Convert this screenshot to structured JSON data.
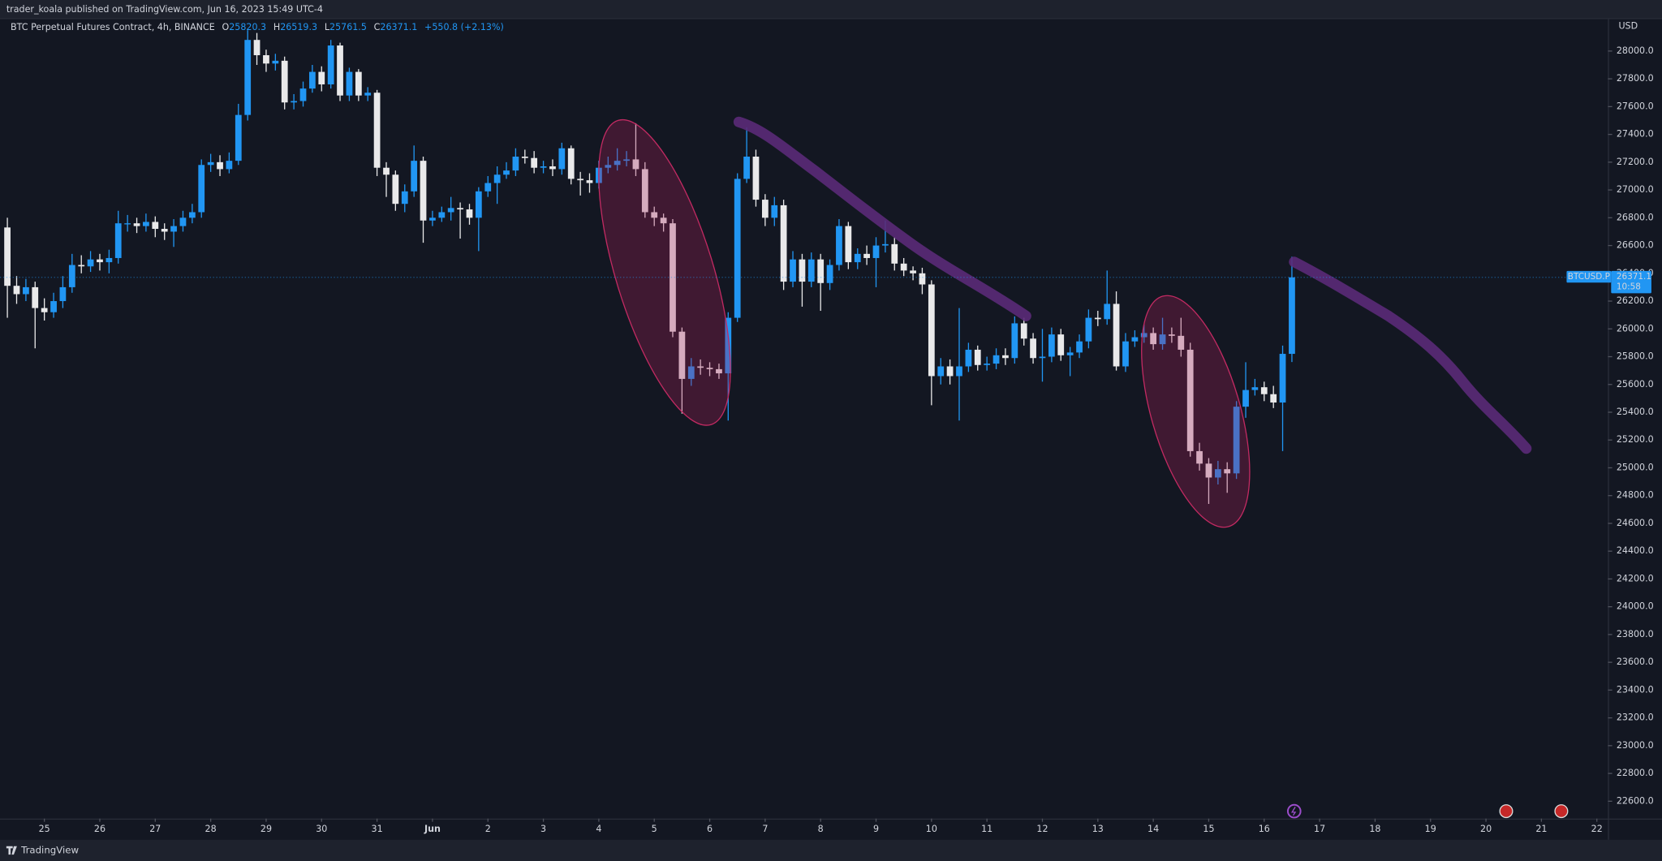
{
  "header": {
    "text": "trader_koala published on TradingView.com, Jun 16, 2023 15:49 UTC-4"
  },
  "footer": {
    "brand": "TradingView"
  },
  "legend": {
    "symbol": "BTC Perpetual Futures Contract, 4h, BINANCE",
    "open_label": "O",
    "high_label": "H",
    "low_label": "L",
    "close_label": "C",
    "change": "+550.8 (+2.13%)"
  },
  "price_tag": {
    "ticker": "BTCUSD.P",
    "countdown": "10:58"
  },
  "chart_data": {
    "type": "candlestick",
    "currency": "USD",
    "up_color": "#2196f3",
    "down_color": "#e9e9ea",
    "grid": false,
    "xlim": [
      24.2,
      53.2
    ],
    "xticks": [
      25,
      26,
      27,
      28,
      29,
      30,
      31,
      {
        "value": 32,
        "label": "Jun"
      },
      {
        "value": 33,
        "label": "2"
      },
      {
        "value": 34,
        "label": "3"
      },
      {
        "value": 35,
        "label": "4"
      },
      {
        "value": 36,
        "label": "5"
      },
      {
        "value": 37,
        "label": "6"
      },
      {
        "value": 38,
        "label": "7"
      },
      {
        "value": 39,
        "label": "8"
      },
      {
        "value": 40,
        "label": "9"
      },
      {
        "value": 41,
        "label": "10"
      },
      {
        "value": 42,
        "label": "11"
      },
      {
        "value": 43,
        "label": "12"
      },
      {
        "value": 44,
        "label": "13"
      },
      {
        "value": 45,
        "label": "14"
      },
      {
        "value": 46,
        "label": "15"
      },
      {
        "value": 47,
        "label": "16"
      },
      {
        "value": 48,
        "label": "17"
      },
      {
        "value": 49,
        "label": "18"
      },
      {
        "value": 50,
        "label": "19"
      },
      {
        "value": 51,
        "label": "20"
      },
      {
        "value": 52,
        "label": "21"
      },
      {
        "value": 53,
        "label": "22"
      }
    ],
    "ylim": [
      22475,
      28230
    ],
    "yticks": [
      {
        "value": 22600,
        "label": "22600.0"
      },
      {
        "value": 22800,
        "label": "22800.0"
      },
      {
        "value": 23000,
        "label": "23000.0"
      },
      {
        "value": 23200,
        "label": "23200.0"
      },
      {
        "value": 23400,
        "label": "23400.0"
      },
      {
        "value": 23600,
        "label": "23600.0"
      },
      {
        "value": 23800,
        "label": "23800.0"
      },
      {
        "value": 24000,
        "label": "24000.0"
      },
      {
        "value": 24200,
        "label": "24200.0"
      },
      {
        "value": 24400,
        "label": "24400.0"
      },
      {
        "value": 24600,
        "label": "24600.0"
      },
      {
        "value": 24800,
        "label": "24800.0"
      },
      {
        "value": 25000,
        "label": "25000.0"
      },
      {
        "value": 25200,
        "label": "25200.0"
      },
      {
        "value": 25400,
        "label": "25400.0"
      },
      {
        "value": 25600,
        "label": "25600.0"
      },
      {
        "value": 25800,
        "label": "25800.0"
      },
      {
        "value": 26000,
        "label": "26000.0"
      },
      {
        "value": 26200,
        "label": "26200.0"
      },
      {
        "value": 26400,
        "label": "26400.0"
      },
      {
        "value": 26600,
        "label": "26600.0"
      },
      {
        "value": 26800,
        "label": "26800.0"
      },
      {
        "value": 27000,
        "label": "27000.0"
      },
      {
        "value": 27200,
        "label": "27200.0"
      },
      {
        "value": 27400,
        "label": "27400.0"
      },
      {
        "value": 27600,
        "label": "27600.0"
      },
      {
        "value": 27800,
        "label": "27800.0"
      },
      {
        "value": 28000,
        "label": "28000.0"
      }
    ],
    "x": [
      24.333,
      24.5,
      24.667,
      24.833,
      25,
      25.167,
      25.333,
      25.5,
      25.667,
      25.833,
      26,
      26.167,
      26.333,
      26.5,
      26.667,
      26.833,
      27,
      27.167,
      27.333,
      27.5,
      27.667,
      27.833,
      28,
      28.167,
      28.333,
      28.5,
      28.667,
      28.833,
      29,
      29.167,
      29.333,
      29.5,
      29.667,
      29.833,
      30,
      30.167,
      30.333,
      30.5,
      30.667,
      30.833,
      31,
      31.167,
      31.333,
      31.5,
      31.667,
      31.833,
      32,
      32.167,
      32.333,
      32.5,
      32.667,
      32.833,
      33,
      33.167,
      33.333,
      33.5,
      33.667,
      33.833,
      34,
      34.167,
      34.333,
      34.5,
      34.667,
      34.833,
      35,
      35.167,
      35.333,
      35.5,
      35.667,
      35.833,
      36,
      36.167,
      36.333,
      36.5,
      36.667,
      36.833,
      37,
      37.167,
      37.333,
      37.5,
      37.667,
      37.833,
      38,
      38.167,
      38.333,
      38.5,
      38.667,
      38.833,
      39,
      39.167,
      39.333,
      39.5,
      39.667,
      39.833,
      40,
      40.167,
      40.333,
      40.5,
      40.667,
      40.833,
      41,
      41.167,
      41.333,
      41.5,
      41.667,
      41.833,
      42,
      42.167,
      42.333,
      42.5,
      42.667,
      42.833,
      43,
      43.167,
      43.333,
      43.5,
      43.667,
      43.833,
      44,
      44.167,
      44.333,
      44.5,
      44.667,
      44.833,
      45,
      45.167,
      45.333,
      45.5,
      45.667,
      45.833,
      46,
      46.167,
      46.333,
      46.5,
      46.667,
      46.833,
      47,
      47.167,
      47.333,
      47.5
    ],
    "open": [
      26730,
      26310,
      26250,
      26300,
      26150,
      26120,
      26200,
      26300,
      26460,
      26450,
      26500,
      26480,
      26510,
      26760,
      26760,
      26740,
      26770,
      26720,
      26700,
      26740,
      26800,
      26840,
      27180,
      27200,
      27150,
      27210,
      27540,
      28080,
      27970,
      27910,
      27930,
      27630,
      27640,
      27730,
      27850,
      27760,
      28040,
      27680,
      27850,
      27680,
      27700,
      27160,
      27110,
      26900,
      26990,
      27210,
      26780,
      26800,
      26840,
      26870,
      26860,
      26800,
      26990,
      27050,
      27110,
      27140,
      27240,
      27230,
      27160,
      27170,
      27150,
      27300,
      27080,
      27070,
      27050,
      27160,
      27180,
      27210,
      27220,
      27150,
      26840,
      26800,
      26760,
      25980,
      25640,
      25730,
      25720,
      25710,
      25680,
      26080,
      27080,
      27240,
      26930,
      26800,
      26890,
      26340,
      26500,
      26340,
      26500,
      26330,
      26460,
      26740,
      26480,
      26540,
      26510,
      26600,
      26610,
      26470,
      26420,
      26400,
      26320,
      25660,
      25730,
      25660,
      25730,
      25850,
      25740,
      25750,
      25810,
      25790,
      26040,
      25930,
      25790,
      25800,
      25960,
      25810,
      25830,
      25910,
      26080,
      26070,
      26180,
      25730,
      25910,
      25940,
      25970,
      25890,
      25960,
      25950,
      25850,
      25120,
      25030,
      24930,
      24990,
      24960,
      25440,
      25560,
      25580,
      25530,
      25470,
      25820.3
    ],
    "high": [
      26800,
      26380,
      26360,
      26340,
      26220,
      26260,
      26380,
      26540,
      26530,
      26560,
      26540,
      26570,
      26850,
      26820,
      26800,
      26830,
      26810,
      26760,
      26790,
      26850,
      26900,
      27220,
      27260,
      27250,
      27270,
      27620,
      28150,
      28130,
      28010,
      27980,
      27960,
      27690,
      27780,
      27900,
      27890,
      28080,
      28060,
      27880,
      27870,
      27740,
      27720,
      27200,
      27140,
      27040,
      27320,
      27240,
      26850,
      26880,
      26950,
      26910,
      26900,
      27020,
      27100,
      27170,
      27200,
      27300,
      27290,
      27280,
      27210,
      27220,
      27340,
      27320,
      27130,
      27120,
      27210,
      27240,
      27300,
      27280,
      27480,
      27200,
      26880,
      26830,
      26790,
      26010,
      25790,
      25780,
      25760,
      25750,
      26120,
      27120,
      27450,
      27290,
      26970,
      26950,
      26930,
      26560,
      26540,
      26550,
      26540,
      26500,
      26790,
      26770,
      26580,
      26600,
      26660,
      26780,
      26660,
      26510,
      26450,
      26440,
      26350,
      25790,
      25780,
      26150,
      25900,
      25880,
      25800,
      25860,
      25860,
      26090,
      26080,
      25970,
      26000,
      26010,
      26000,
      25870,
      25960,
      26140,
      26130,
      26420,
      26270,
      25970,
      25990,
      26030,
      26010,
      26080,
      26010,
      26080,
      25900,
      25180,
      25070,
      25050,
      25040,
      25480,
      25760,
      25640,
      25620,
      25590,
      25880,
      26519.3
    ],
    "low": [
      26080,
      26180,
      26200,
      25860,
      26060,
      26080,
      26150,
      26260,
      26400,
      26410,
      26420,
      26400,
      26470,
      26700,
      26690,
      26700,
      26660,
      26640,
      26590,
      26700,
      26760,
      26800,
      27130,
      27100,
      27120,
      27180,
      27500,
      27900,
      27850,
      27860,
      27580,
      27580,
      27600,
      27700,
      27710,
      27730,
      27640,
      27640,
      27640,
      27640,
      27100,
      26950,
      26850,
      26840,
      26950,
      26620,
      26740,
      26770,
      26780,
      26650,
      26750,
      26560,
      26950,
      26900,
      27080,
      27100,
      27190,
      27120,
      27120,
      27100,
      27110,
      27040,
      26960,
      26980,
      27010,
      27120,
      27140,
      27170,
      27100,
      26800,
      26740,
      26700,
      25940,
      25390,
      25590,
      25670,
      25660,
      25640,
      25340,
      26050,
      27050,
      26880,
      26740,
      26740,
      26280,
      26300,
      26160,
      26300,
      26130,
      26280,
      26420,
      26430,
      26430,
      26460,
      26300,
      26550,
      26420,
      26380,
      26350,
      26250,
      25450,
      25600,
      25600,
      25340,
      25690,
      25700,
      25700,
      25710,
      25740,
      25750,
      25880,
      25750,
      25620,
      25760,
      25770,
      25660,
      25790,
      25860,
      26020,
      26030,
      25700,
      25690,
      25870,
      25900,
      25850,
      25850,
      25900,
      25800,
      25080,
      24980,
      24740,
      24880,
      24820,
      24920,
      25360,
      25520,
      25480,
      25430,
      25120,
      25761.5
    ],
    "close": [
      26310,
      26250,
      26300,
      26150,
      26120,
      26200,
      26300,
      26460,
      26450,
      26500,
      26480,
      26510,
      26760,
      26760,
      26740,
      26770,
      26720,
      26700,
      26740,
      26800,
      26840,
      27180,
      27200,
      27150,
      27210,
      27540,
      28080,
      27970,
      27910,
      27930,
      27630,
      27640,
      27730,
      27850,
      27760,
      28040,
      27680,
      27850,
      27680,
      27700,
      27160,
      27110,
      26900,
      26990,
      27210,
      26780,
      26800,
      26840,
      26870,
      26860,
      26800,
      26990,
      27050,
      27110,
      27140,
      27240,
      27230,
      27160,
      27170,
      27150,
      27300,
      27080,
      27070,
      27050,
      27160,
      27180,
      27210,
      27220,
      27150,
      26840,
      26800,
      26760,
      25980,
      25640,
      25730,
      25720,
      25710,
      25680,
      26080,
      27080,
      27240,
      26930,
      26800,
      26890,
      26340,
      26500,
      26340,
      26500,
      26330,
      26460,
      26740,
      26480,
      26540,
      26510,
      26600,
      26610,
      26470,
      26420,
      26400,
      26320,
      25660,
      25730,
      25660,
      25730,
      25850,
      25740,
      25750,
      25810,
      25790,
      26040,
      25930,
      25790,
      25800,
      25960,
      25810,
      25830,
      25910,
      26080,
      26070,
      26180,
      25730,
      25910,
      25940,
      25970,
      25890,
      25960,
      25950,
      25850,
      25120,
      25030,
      24930,
      24990,
      24960,
      25440,
      25560,
      25580,
      25530,
      25470,
      25820.3,
      26371.1
    ]
  }
}
